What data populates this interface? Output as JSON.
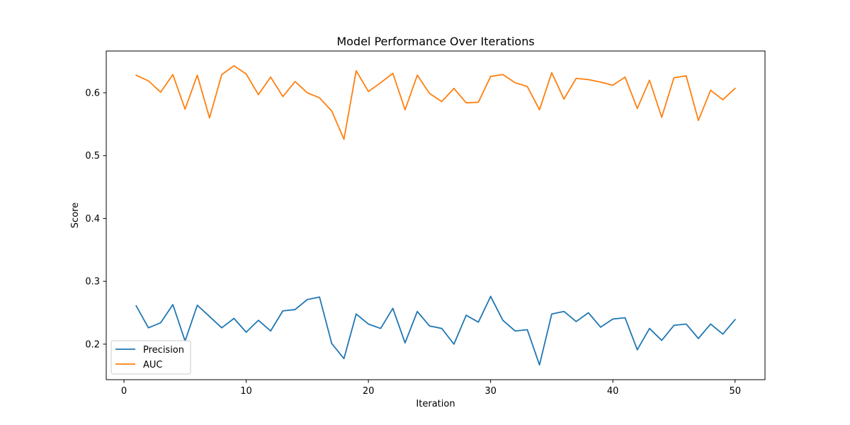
{
  "chart_data": {
    "type": "line",
    "title": "Model Performance Over Iterations",
    "xlabel": "Iteration",
    "ylabel": "Score",
    "xlim": [
      -1.45,
      52.45
    ],
    "ylim": [
      0.1435,
      0.6665
    ],
    "xticks": [
      0,
      10,
      20,
      30,
      40,
      50
    ],
    "yticks": [
      0.2,
      0.3,
      0.4,
      0.5,
      0.6
    ],
    "ytick_labels": [
      "0.2",
      "0.3",
      "0.4",
      "0.5",
      "0.6"
    ],
    "grid": false,
    "legend_position": "lower-left",
    "x": [
      1,
      2,
      3,
      4,
      5,
      6,
      7,
      8,
      9,
      10,
      11,
      12,
      13,
      14,
      15,
      16,
      17,
      18,
      19,
      20,
      21,
      22,
      23,
      24,
      25,
      26,
      27,
      28,
      29,
      30,
      31,
      32,
      33,
      34,
      35,
      36,
      37,
      38,
      39,
      40,
      41,
      42,
      43,
      44,
      45,
      46,
      47,
      48,
      49,
      50
    ],
    "series": [
      {
        "name": "Precision",
        "color": "#1f77b4",
        "values": [
          0.261,
          0.226,
          0.234,
          0.263,
          0.205,
          0.262,
          0.244,
          0.226,
          0.241,
          0.219,
          0.238,
          0.221,
          0.253,
          0.255,
          0.271,
          0.275,
          0.201,
          0.177,
          0.248,
          0.232,
          0.225,
          0.257,
          0.202,
          0.252,
          0.229,
          0.225,
          0.2,
          0.246,
          0.235,
          0.276,
          0.238,
          0.221,
          0.223,
          0.167,
          0.248,
          0.252,
          0.236,
          0.25,
          0.227,
          0.24,
          0.242,
          0.191,
          0.225,
          0.206,
          0.23,
          0.232,
          0.209,
          0.232,
          0.216,
          0.239
        ]
      },
      {
        "name": "AUC",
        "color": "#ff7f0e",
        "values": [
          0.628,
          0.619,
          0.601,
          0.629,
          0.574,
          0.628,
          0.56,
          0.629,
          0.643,
          0.63,
          0.597,
          0.625,
          0.594,
          0.618,
          0.6,
          0.592,
          0.571,
          0.526,
          0.635,
          0.602,
          0.616,
          0.631,
          0.573,
          0.628,
          0.599,
          0.586,
          0.607,
          0.584,
          0.585,
          0.626,
          0.629,
          0.616,
          0.61,
          0.573,
          0.632,
          0.59,
          0.623,
          0.621,
          0.617,
          0.612,
          0.625,
          0.575,
          0.62,
          0.561,
          0.624,
          0.627,
          0.556,
          0.604,
          0.589,
          0.607
        ]
      }
    ]
  }
}
